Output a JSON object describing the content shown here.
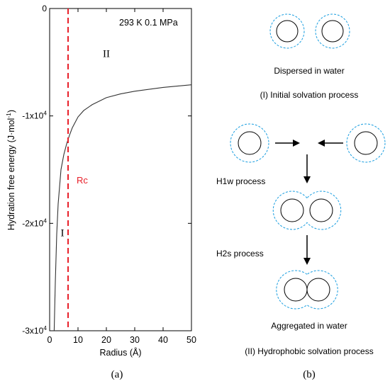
{
  "chart_data": {
    "type": "line",
    "condition_label": "293 K  0.1 MPa",
    "xlabel": "Radius (Å)",
    "ylabel_main": "Hydration free energy (J·mol",
    "ylabel_sup": "-1",
    "ylabel_close": ")",
    "xlim": [
      0,
      50
    ],
    "ylim": [
      -30000,
      0
    ],
    "x_ticks": [
      0,
      10,
      20,
      30,
      40,
      50
    ],
    "x_tick_labels": [
      "0",
      "10",
      "20",
      "30",
      "40",
      "50"
    ],
    "y_ticks": [
      0,
      -10000,
      -20000,
      -30000
    ],
    "y_tick_labels": [
      {
        "base": "0",
        "exp": ""
      },
      {
        "base": "-1x10",
        "exp": "4"
      },
      {
        "base": "-2x10",
        "exp": "4"
      },
      {
        "base": "-3x10",
        "exp": "4"
      }
    ],
    "series": [
      {
        "x": [
          1.6,
          2,
          2.5,
          3,
          4,
          5,
          6,
          7,
          8,
          10,
          12,
          15,
          20,
          25,
          30,
          40,
          50
        ],
        "y": [
          -30000,
          -25500,
          -21000,
          -18200,
          -15000,
          -13600,
          -12600,
          -11800,
          -11100,
          -10100,
          -9500,
          -8950,
          -8300,
          -7950,
          -7700,
          -7350,
          -7100
        ],
        "color": "#333333"
      }
    ],
    "rc_x": 6.5,
    "rc_label": "Rc",
    "rc_color": "#e8202a",
    "region_labels": [
      {
        "text": "II",
        "x": 20,
        "y": -4500
      },
      {
        "text": "I",
        "x": 4.5,
        "y": -21200
      }
    ],
    "panel_label": "(a)"
  },
  "diagram": {
    "dispersed_label": "Dispersed in water",
    "initial_label": "(I) Initial solvation process",
    "h1w_label": "H1w process",
    "h2s_label": "H2s process",
    "aggregated_label": "Aggregated in water",
    "hydrophobic_label": "(II) Hydrophobic solvation process",
    "panel_label": "(b)",
    "shell_color": "#1a9ee0"
  }
}
